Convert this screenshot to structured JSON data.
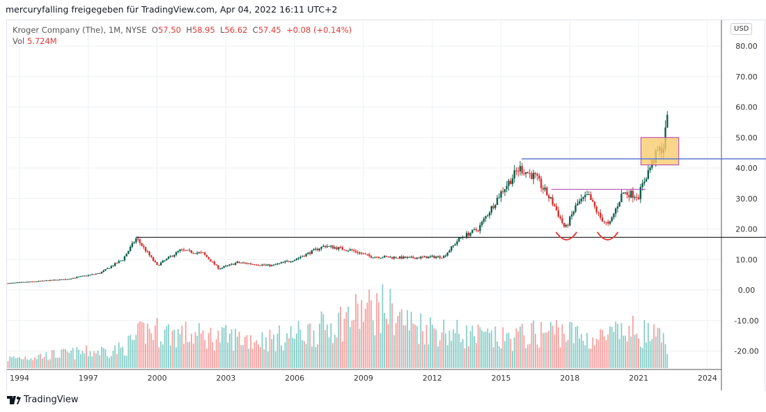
{
  "header": {
    "attribution": "mercuryfalling freigegeben für TradingView.com, Apr 04, 2022 16:11 UTC+2"
  },
  "legend": {
    "symbol": "Kroger Company (The), 1M, NYSE",
    "o_label": "O",
    "o": "57.50",
    "h_label": "H",
    "h": "58.95",
    "l_label": "L",
    "l": "56.62",
    "c_label": "C",
    "c": "57.45",
    "change": "+0.08 (+0.14%)",
    "vol_label": "Vol",
    "vol": "5.724M"
  },
  "currency": "USD",
  "brand": "TradingView",
  "colors": {
    "up": "#26a69a",
    "down": "#ef5350",
    "up_candle": "#0b5e4a",
    "down_candle": "#d32f2f",
    "hline": "#000000",
    "blue": "#5b7bd5",
    "magenta": "#b03cb0",
    "box": "#f8cc6e"
  },
  "chart_data": {
    "type": "candlestick",
    "title": "Kroger Company (The), 1M, NYSE",
    "y_ticks": [
      "80.00",
      "70.00",
      "60.00",
      "50.00",
      "40.00",
      "30.00",
      "20.00",
      "10.00",
      "0.00",
      "-10.00",
      "-20.00"
    ],
    "y_values": [
      80,
      70,
      60,
      50,
      40,
      30,
      20,
      10,
      0,
      -10,
      -20
    ],
    "x_ticks": [
      "1994",
      "1997",
      "2000",
      "2003",
      "2006",
      "2009",
      "2012",
      "2015",
      "2018",
      "2021",
      "2024"
    ],
    "x_values": [
      1994,
      1997,
      2000,
      2003,
      2006,
      2009,
      2012,
      2015,
      2018,
      2021,
      2024
    ],
    "xlim": [
      1993.45,
      2025.6
    ],
    "ylim": [
      -25,
      88
    ],
    "close_path": [
      [
        1993.5,
        2.2
      ],
      [
        1996,
        3.5
      ],
      [
        1997.5,
        5.5
      ],
      [
        1998.5,
        10
      ],
      [
        1999.1,
        17
      ],
      [
        1999.5,
        13
      ],
      [
        2000,
        8
      ],
      [
        2001,
        13
      ],
      [
        2002,
        12
      ],
      [
        2002.7,
        7
      ],
      [
        2003.5,
        9
      ],
      [
        2005,
        8
      ],
      [
        2006,
        10
      ],
      [
        2007.3,
        14.5
      ],
      [
        2008.5,
        13
      ],
      [
        2009.3,
        11
      ],
      [
        2011,
        10.5
      ],
      [
        2012.5,
        11
      ],
      [
        2013.2,
        17
      ],
      [
        2014,
        20
      ],
      [
        2015,
        32
      ],
      [
        2015.8,
        40
      ],
      [
        2016.5,
        37
      ],
      [
        2017.3,
        28
      ],
      [
        2017.8,
        20
      ],
      [
        2018.3,
        28
      ],
      [
        2018.8,
        31
      ],
      [
        2019.3,
        24
      ],
      [
        2019.7,
        21
      ],
      [
        2020.3,
        32
      ],
      [
        2021,
        31
      ],
      [
        2021.3,
        37
      ],
      [
        2021.8,
        45
      ],
      [
        2022.1,
        47
      ],
      [
        2022.25,
        57.5
      ]
    ],
    "volume_path": [
      [
        1993.5,
        0.15
      ],
      [
        1998.5,
        0.3
      ],
      [
        1999.5,
        0.6
      ],
      [
        2002,
        0.5
      ],
      [
        2005,
        0.45
      ],
      [
        2007,
        0.6
      ],
      [
        2009,
        0.9
      ],
      [
        2010,
        0.95
      ],
      [
        2011,
        0.7
      ],
      [
        2013,
        0.55
      ],
      [
        2015,
        0.45
      ],
      [
        2017.5,
        0.6
      ],
      [
        2019,
        0.45
      ],
      [
        2021,
        0.6
      ],
      [
        2022.25,
        0.4
      ]
    ],
    "annotations": {
      "support_line": {
        "price": 17.3,
        "from": 1999.1,
        "to": 2026.9
      },
      "resistance_line": {
        "price": 43,
        "from": 2015.9,
        "to": 2026.8
      },
      "neckline": {
        "price": 33,
        "from": 2017.2,
        "to": 2021.3
      },
      "box": {
        "from": 2021.1,
        "to": 2022.75,
        "low": 41,
        "high": 50
      },
      "arcs": [
        [
          2017.4,
          2018.3
        ],
        [
          2019.2,
          2020.1
        ]
      ]
    }
  }
}
